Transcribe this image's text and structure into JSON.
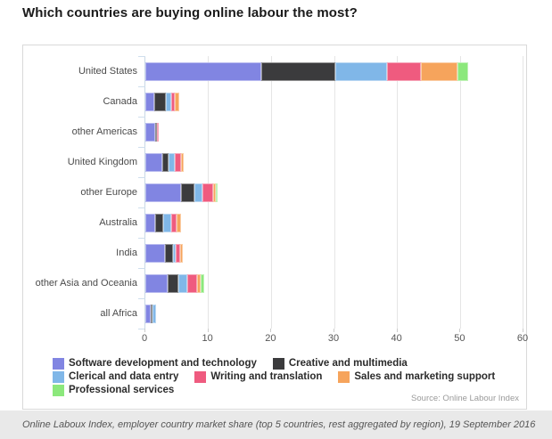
{
  "page": {
    "title": "Which countries are buying online labour the most?",
    "source_note": "Source: Online Labour Index",
    "caption": "Online Laboux Index, employer country market share (top 5 countries, rest aggregated by region), 19 September 2016"
  },
  "chart_data": {
    "type": "bar",
    "orientation": "horizontal",
    "stacked": true,
    "title": "Which countries are buying online labour the most?",
    "categories": [
      "United States",
      "Canada",
      "other Americas",
      "United Kingdom",
      "other Europe",
      "Australia",
      "India",
      "other Asia and Oceania",
      "all Africa"
    ],
    "series": [
      {
        "name": "Software development and technology",
        "color": "#8185e2",
        "values": [
          18.5,
          1.4,
          1.5,
          2.7,
          5.7,
          1.5,
          3.1,
          3.5,
          0.8
        ]
      },
      {
        "name": "Creative and multimedia",
        "color": "#3b3b3d",
        "values": [
          11.7,
          1.9,
          0.2,
          1.0,
          2.1,
          1.4,
          1.3,
          1.7,
          0.4
        ]
      },
      {
        "name": "Clerical and data entry",
        "color": "#80b7e8",
        "values": [
          8.2,
          0.8,
          0,
          1.0,
          1.3,
          1.2,
          0.4,
          1.5,
          0.45
        ]
      },
      {
        "name": "Writing and translation",
        "color": "#ef5b7f",
        "values": [
          5.5,
          0.6,
          0.3,
          0.95,
          1.7,
          0.8,
          0.7,
          1.6,
          0
        ]
      },
      {
        "name": "Sales and marketing support",
        "color": "#f6a45c",
        "values": [
          5.7,
          0.7,
          0,
          0.4,
          0.4,
          0.75,
          0.4,
          0.45,
          0
        ]
      },
      {
        "name": "Professional services",
        "color": "#8ce87c",
        "values": [
          1.7,
          0,
          0,
          0,
          0.3,
          0,
          0,
          0.55,
          0
        ]
      }
    ],
    "x_ticks": [
      0,
      10,
      20,
      30,
      40,
      50,
      60
    ],
    "xlim": [
      0,
      60
    ],
    "grid": true,
    "legend_position": "bottom",
    "legend_rows": [
      [
        0,
        1
      ],
      [
        2,
        3,
        4
      ],
      [
        5
      ]
    ]
  }
}
